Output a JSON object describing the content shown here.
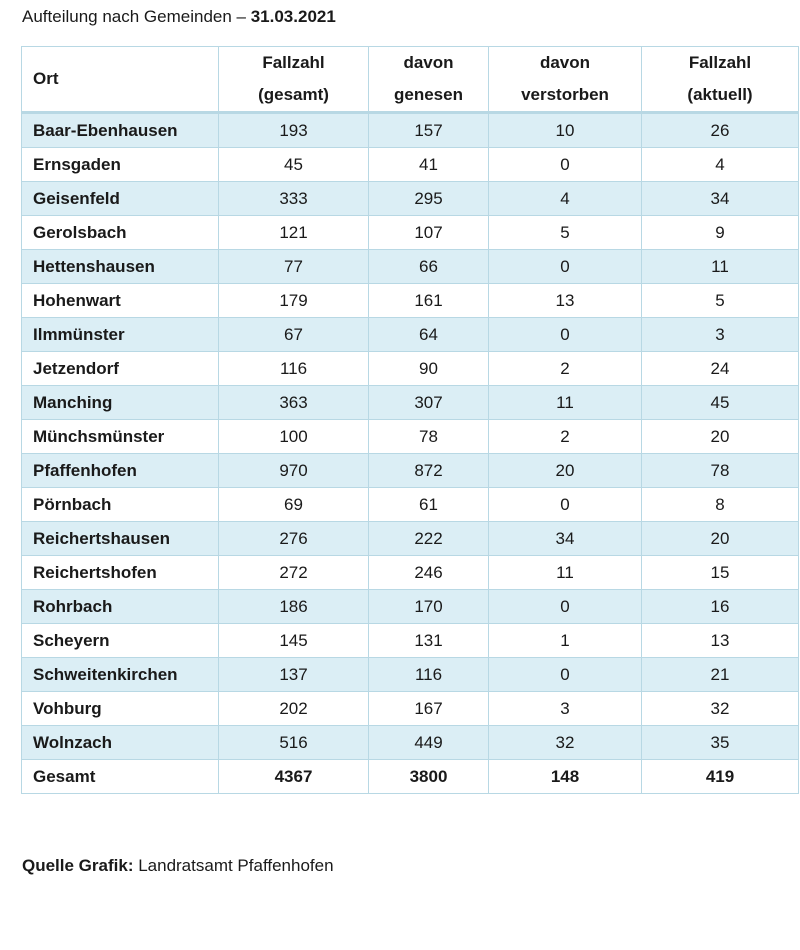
{
  "title": {
    "prefix": "Aufteilung nach Gemeinden – ",
    "date": "31.03.2021"
  },
  "table": {
    "headers": [
      {
        "line1": "Ort",
        "line2": ""
      },
      {
        "line1": "Fallzahl",
        "line2": "(gesamt)"
      },
      {
        "line1": "davon",
        "line2": "genesen"
      },
      {
        "line1": "davon",
        "line2": "verstorben"
      },
      {
        "line1": "Fallzahl",
        "line2": "(aktuell)"
      }
    ],
    "rows": [
      [
        "Baar-Ebenhausen",
        "193",
        "157",
        "10",
        "26"
      ],
      [
        "Ernsgaden",
        "45",
        "41",
        "0",
        "4"
      ],
      [
        "Geisenfeld",
        "333",
        "295",
        "4",
        "34"
      ],
      [
        "Gerolsbach",
        "121",
        "107",
        "5",
        "9"
      ],
      [
        "Hettenshausen",
        "77",
        "66",
        "0",
        "11"
      ],
      [
        "Hohenwart",
        "179",
        "161",
        "13",
        "5"
      ],
      [
        "Ilmmünster",
        "67",
        "64",
        "0",
        "3"
      ],
      [
        "Jetzendorf",
        "116",
        "90",
        "2",
        "24"
      ],
      [
        "Manching",
        "363",
        "307",
        "11",
        "45"
      ],
      [
        "Münchsmünster",
        "100",
        "78",
        "2",
        "20"
      ],
      [
        "Pfaffenhofen",
        "970",
        "872",
        "20",
        "78"
      ],
      [
        "Pörnbach",
        "69",
        "61",
        "0",
        "8"
      ],
      [
        "Reichertshausen",
        "276",
        "222",
        "34",
        "20"
      ],
      [
        "Reichertshofen",
        "272",
        "246",
        "11",
        "15"
      ],
      [
        "Rohrbach",
        "186",
        "170",
        "0",
        "16"
      ],
      [
        "Scheyern",
        "145",
        "131",
        "1",
        "13"
      ],
      [
        "Schweitenkirchen",
        "137",
        "116",
        "0",
        "21"
      ],
      [
        "Vohburg",
        "202",
        "167",
        "3",
        "32"
      ],
      [
        "Wolnzach",
        "516",
        "449",
        "32",
        "35"
      ]
    ],
    "total": [
      "Gesamt",
      "4367",
      "3800",
      "148",
      "419"
    ]
  },
  "source": {
    "label": "Quelle Grafik:",
    "text": " Landratsamt Pfaffenhofen"
  },
  "colors": {
    "row_stripe": "#dbeef5",
    "border": "#b8d8e4"
  }
}
